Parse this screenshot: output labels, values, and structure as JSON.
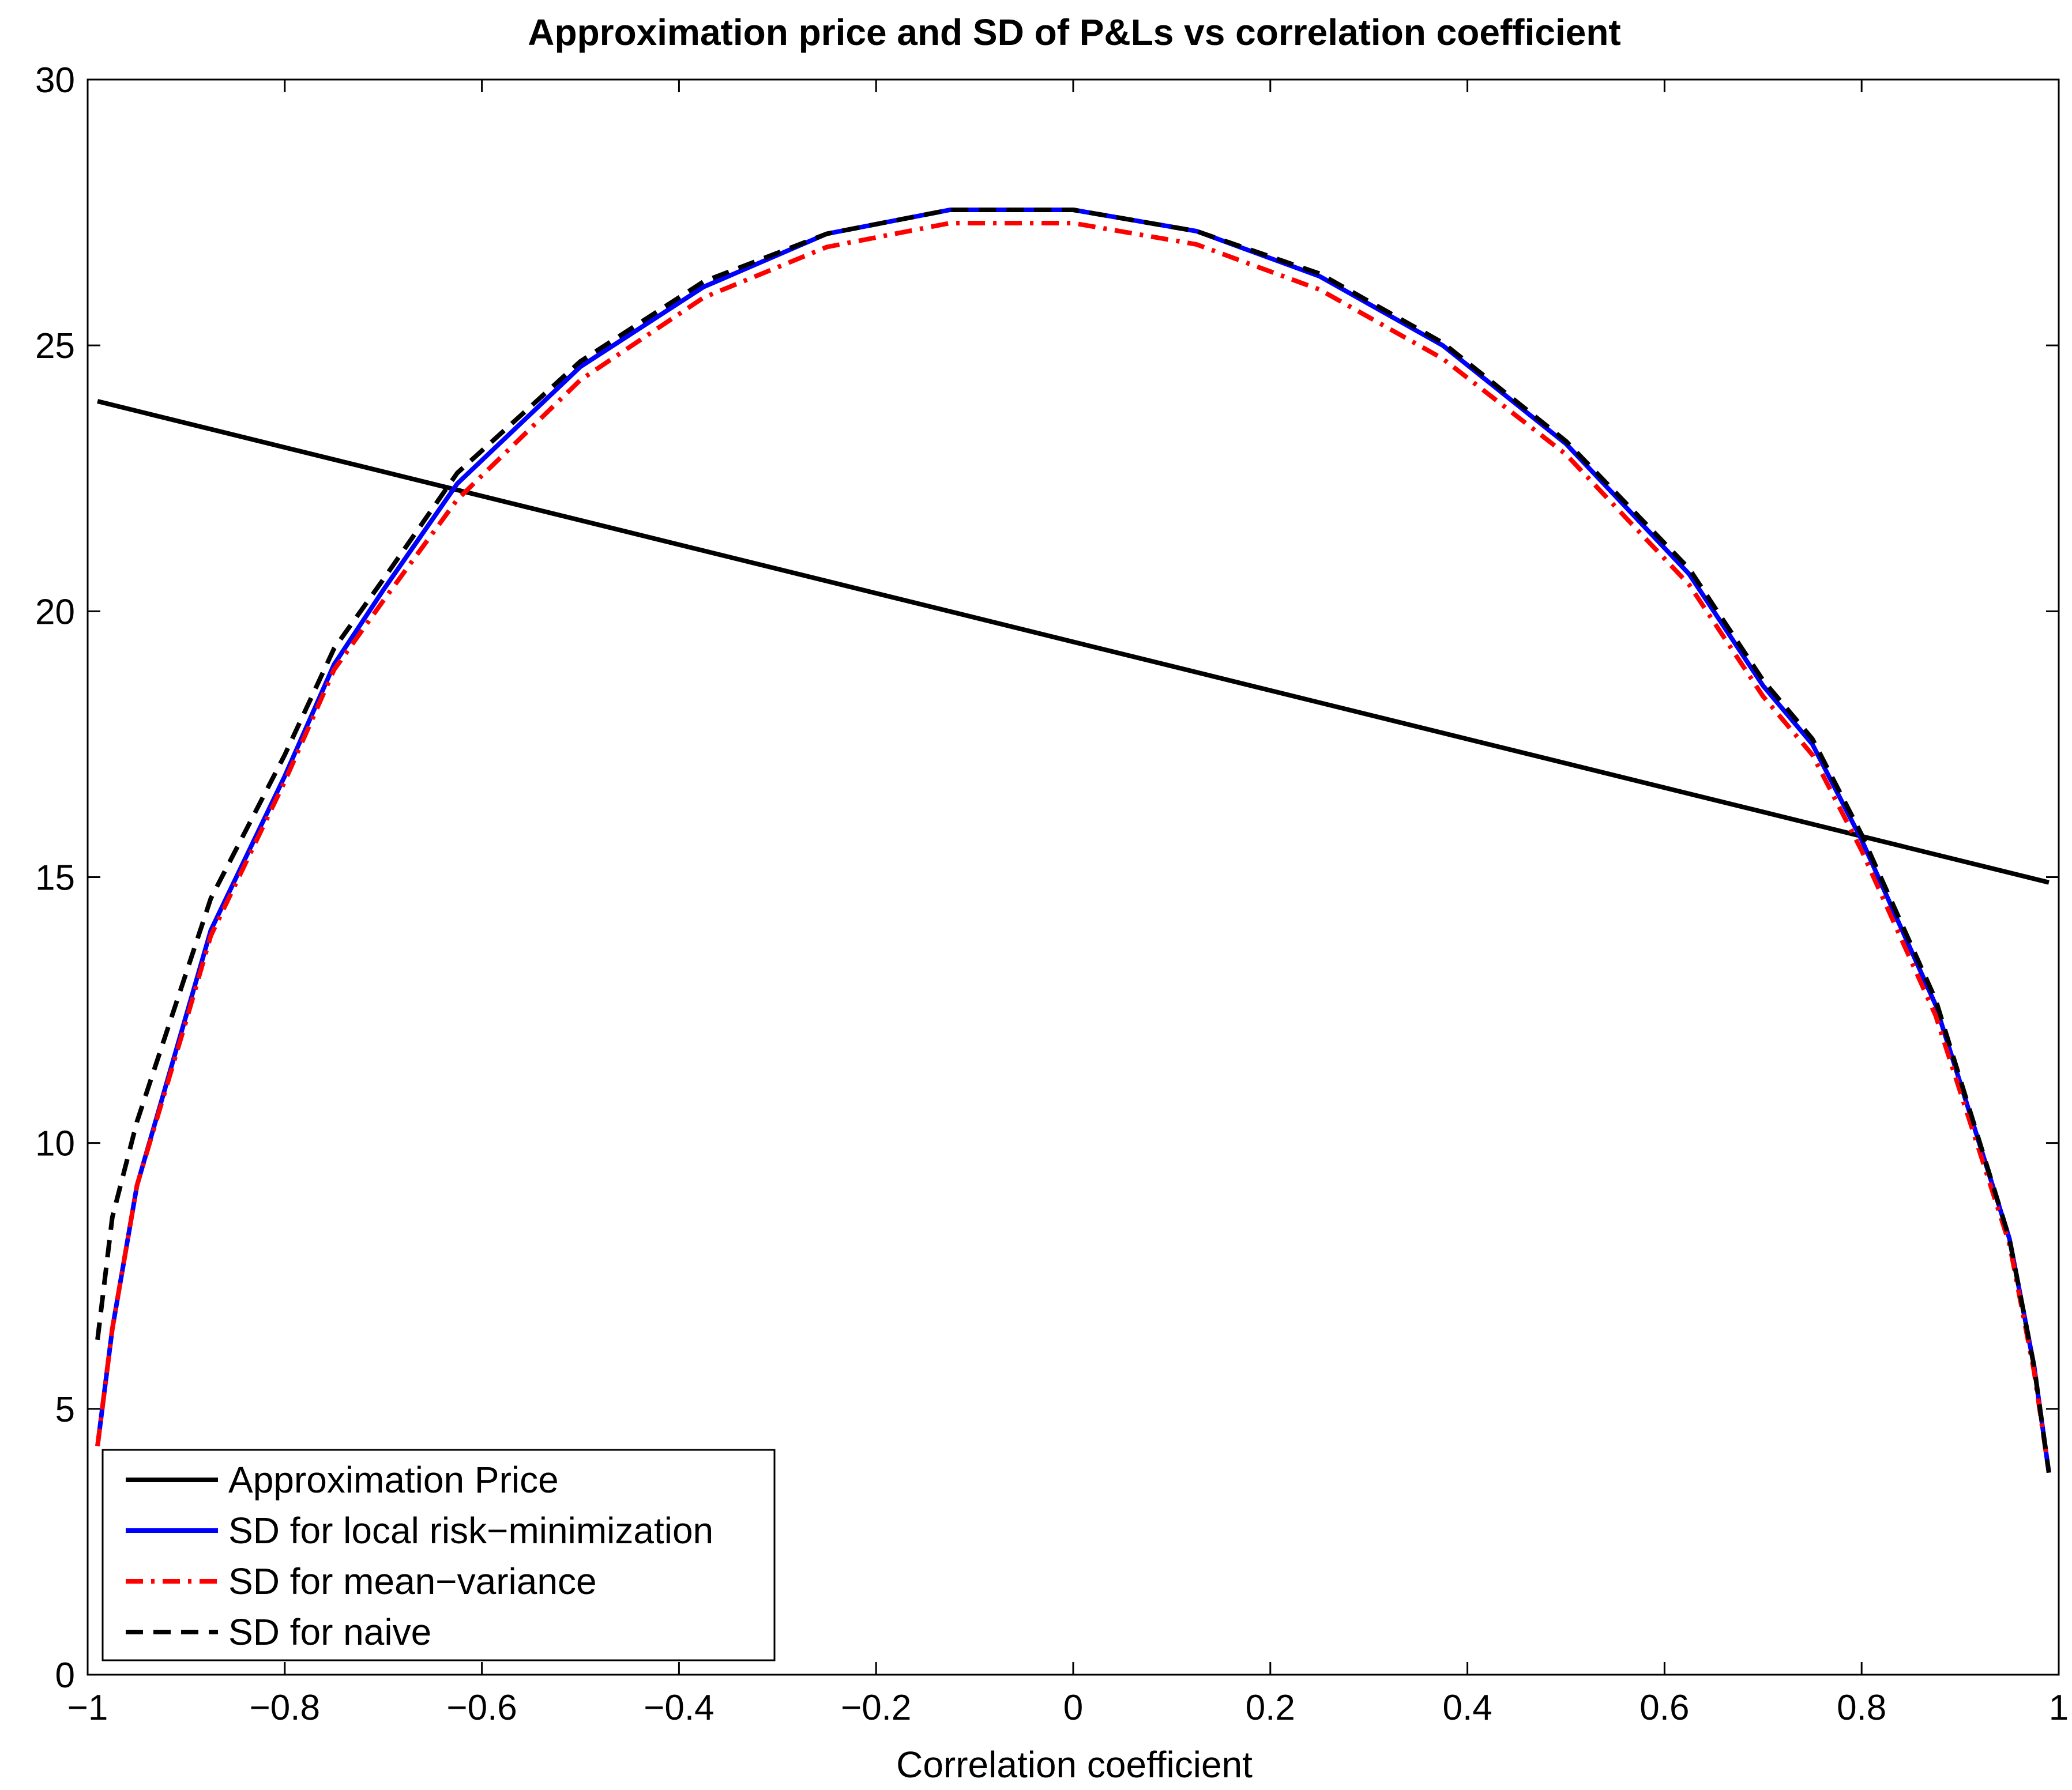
{
  "chart_data": {
    "type": "line",
    "title": "Approximation price and SD of P&Ls vs correlation coefficient",
    "xlabel": "Correlation coefficient",
    "ylabel": "",
    "xlim": [
      -1,
      1
    ],
    "ylim": [
      0,
      30
    ],
    "xticks": [
      -1,
      -0.8,
      -0.6,
      -0.4,
      -0.2,
      0,
      0.2,
      0.4,
      0.6,
      0.8,
      1
    ],
    "xtick_labels": [
      "−1",
      "−0.8",
      "−0.6",
      "−0.4",
      "−0.2",
      "0",
      "0.2",
      "0.4",
      "0.6",
      "0.8",
      "1"
    ],
    "yticks": [
      0,
      5,
      10,
      15,
      20,
      25,
      30
    ],
    "ytick_labels": [
      "0",
      "5",
      "10",
      "15",
      "20",
      "25",
      "30"
    ],
    "grid": false,
    "legend_position": "bottom-left",
    "series": [
      {
        "name": "Approximation Price",
        "color": "#000000",
        "style": "solid",
        "x": [
          -0.99,
          0.99
        ],
        "y": [
          23.95,
          14.9
        ]
      },
      {
        "name": "SD for local risk−minimization",
        "color": "#0000ff",
        "style": "solid",
        "x": [
          -0.99,
          -0.975,
          -0.95,
          -0.9,
          -0.875,
          -0.8,
          -0.75,
          -0.7,
          -0.625,
          -0.5,
          -0.375,
          -0.25,
          -0.125,
          0,
          0.125,
          0.25,
          0.375,
          0.5,
          0.625,
          0.7,
          0.75,
          0.8,
          0.875,
          0.95,
          0.975,
          0.99
        ],
        "y": [
          4.3,
          6.5,
          9.2,
          12.4,
          14.0,
          16.9,
          19.0,
          20.4,
          22.4,
          24.6,
          26.1,
          27.1,
          27.55,
          27.55,
          27.15,
          26.3,
          25.0,
          23.15,
          20.7,
          18.6,
          17.5,
          15.7,
          12.6,
          8.2,
          5.8,
          3.8
        ]
      },
      {
        "name": "SD for mean−variance",
        "color": "#ff0000",
        "style": "dashdot",
        "x": [
          -0.99,
          -0.975,
          -0.95,
          -0.9,
          -0.875,
          -0.8,
          -0.75,
          -0.7,
          -0.625,
          -0.5,
          -0.375,
          -0.25,
          -0.125,
          0,
          0.125,
          0.25,
          0.375,
          0.5,
          0.625,
          0.7,
          0.75,
          0.8,
          0.875,
          0.95,
          0.975,
          0.99
        ],
        "y": [
          4.3,
          6.5,
          9.2,
          12.3,
          13.9,
          16.8,
          18.9,
          20.2,
          22.1,
          24.35,
          25.9,
          26.85,
          27.3,
          27.3,
          26.9,
          26.05,
          24.75,
          22.95,
          20.5,
          18.4,
          17.3,
          15.5,
          12.4,
          8.1,
          5.7,
          3.8
        ]
      },
      {
        "name": "SD for naive",
        "color": "#000000",
        "style": "dashed",
        "x": [
          -0.99,
          -0.975,
          -0.95,
          -0.9,
          -0.875,
          -0.8,
          -0.75,
          -0.7,
          -0.625,
          -0.5,
          -0.375,
          -0.25,
          -0.125,
          0,
          0.125,
          0.25,
          0.375,
          0.5,
          0.625,
          0.7,
          0.75,
          0.8,
          0.875,
          0.95,
          0.975,
          0.99
        ],
        "y": [
          6.3,
          8.6,
          10.4,
          13.2,
          14.6,
          17.3,
          19.3,
          20.6,
          22.6,
          24.7,
          26.2,
          27.1,
          27.55,
          27.55,
          27.15,
          26.35,
          25.05,
          23.2,
          20.8,
          18.7,
          17.6,
          15.8,
          12.7,
          8.2,
          5.8,
          3.8
        ]
      }
    ]
  }
}
